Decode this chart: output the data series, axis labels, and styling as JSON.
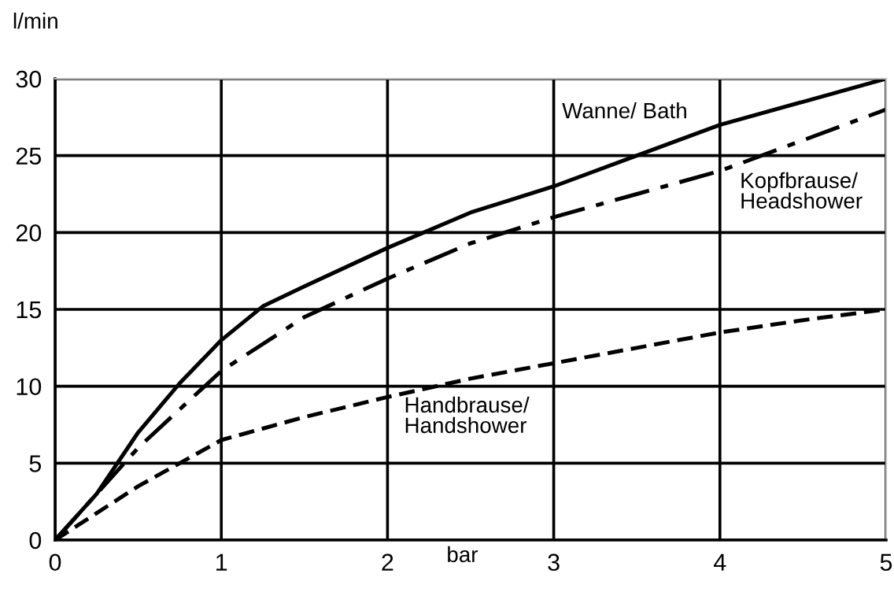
{
  "chart_data": {
    "type": "line",
    "xlabel": "bar",
    "ylabel": "l/min",
    "xlim": [
      0,
      5
    ],
    "ylim": [
      0,
      30
    ],
    "xticks": [
      0,
      1,
      2,
      3,
      4,
      5
    ],
    "yticks": [
      0,
      5,
      10,
      15,
      20,
      25,
      30
    ],
    "grid": true,
    "legend": false,
    "marker": "none",
    "series": [
      {
        "name": "Wanne/ Bath",
        "color": "#000000",
        "line_style": "solid",
        "x": [
          0,
          0.25,
          0.5,
          0.75,
          1,
          1.25,
          1.5,
          2,
          2.5,
          3,
          3.5,
          4,
          4.5,
          5
        ],
        "values": [
          0,
          3,
          7,
          10.2,
          13,
          15.2,
          16.5,
          19,
          21.3,
          23,
          25,
          27,
          28.5,
          30
        ]
      },
      {
        "name": "Kopfbrause/\nHeadshower",
        "color": "#000000",
        "line_style": "dashdot",
        "x": [
          0,
          0.5,
          1,
          1.5,
          2,
          2.5,
          3,
          3.5,
          4,
          4.5,
          5
        ],
        "values": [
          0,
          6,
          11,
          14.5,
          17,
          19.3,
          21,
          22.5,
          24,
          26,
          28
        ]
      },
      {
        "name": "Handbrause/\nHandshower",
        "color": "#000000",
        "line_style": "dashed",
        "x": [
          0,
          0.5,
          0.75,
          1,
          1.5,
          2,
          2.5,
          3,
          3.5,
          4,
          4.5,
          5
        ],
        "values": [
          0,
          3.5,
          5,
          6.5,
          8,
          9.3,
          10.5,
          11.5,
          12.5,
          13.5,
          14.3,
          15
        ]
      }
    ]
  }
}
